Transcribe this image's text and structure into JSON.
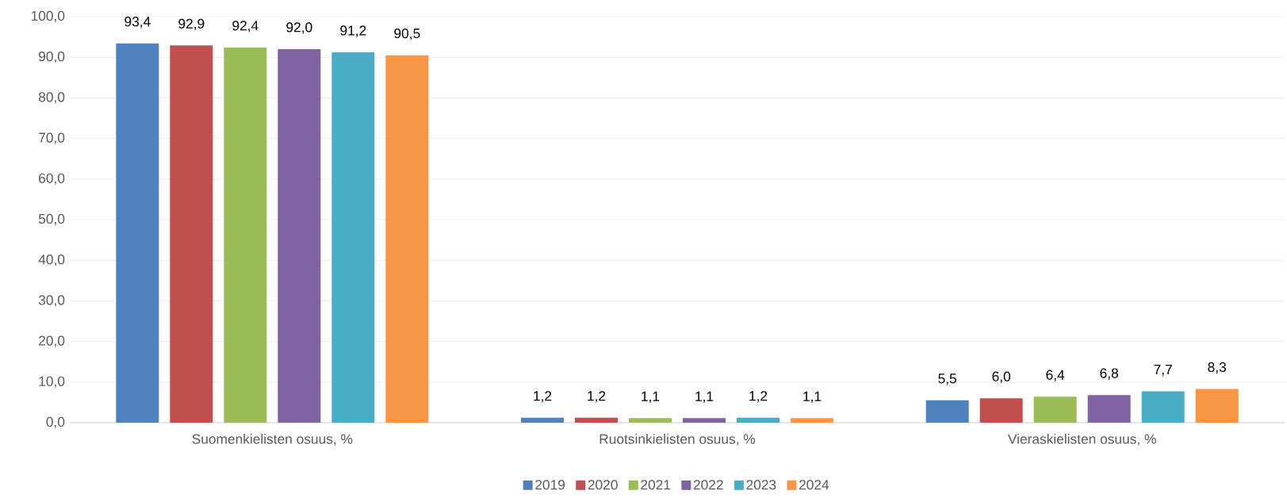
{
  "chart_data": {
    "type": "bar",
    "categories": [
      "Suomenkielisten osuus, %",
      "Ruotsinkielisten osuus, %",
      "Vieraskielisten osuus, %"
    ],
    "series": [
      {
        "name": "2019",
        "color": "#4f81bd",
        "values": [
          93.4,
          1.2,
          5.5
        ],
        "value_labels": [
          "93,4",
          "1,2",
          "5,5"
        ]
      },
      {
        "name": "2020",
        "color": "#c0504d",
        "values": [
          92.9,
          1.2,
          6.0
        ],
        "value_labels": [
          "92,9",
          "1,2",
          "6,0"
        ]
      },
      {
        "name": "2021",
        "color": "#9bbb59",
        "values": [
          92.4,
          1.1,
          6.4
        ],
        "value_labels": [
          "92,4",
          "1,1",
          "6,4"
        ]
      },
      {
        "name": "2022",
        "color": "#8064a2",
        "values": [
          92.0,
          1.1,
          6.8
        ],
        "value_labels": [
          "92,0",
          "1,1",
          "6,8"
        ]
      },
      {
        "name": "2023",
        "color": "#4bacc6",
        "values": [
          91.2,
          1.2,
          7.7
        ],
        "value_labels": [
          "91,2",
          "1,2",
          "7,7"
        ]
      },
      {
        "name": "2024",
        "color": "#f79646",
        "values": [
          90.5,
          1.1,
          8.3
        ],
        "value_labels": [
          "90,5",
          "1,1",
          "8,3"
        ]
      }
    ],
    "ylim": [
      0,
      100
    ],
    "yticks": [
      {
        "value": 0,
        "label": "0,0"
      },
      {
        "value": 10,
        "label": "10,0"
      },
      {
        "value": 20,
        "label": "20,0"
      },
      {
        "value": 30,
        "label": "30,0"
      },
      {
        "value": 40,
        "label": "40,0"
      },
      {
        "value": 50,
        "label": "50,0"
      },
      {
        "value": 60,
        "label": "60,0"
      },
      {
        "value": 70,
        "label": "70,0"
      },
      {
        "value": 80,
        "label": "80,0"
      },
      {
        "value": 90,
        "label": "90,0"
      },
      {
        "value": 100,
        "label": "100,0"
      }
    ],
    "grid": "y",
    "legend": "bottom"
  }
}
